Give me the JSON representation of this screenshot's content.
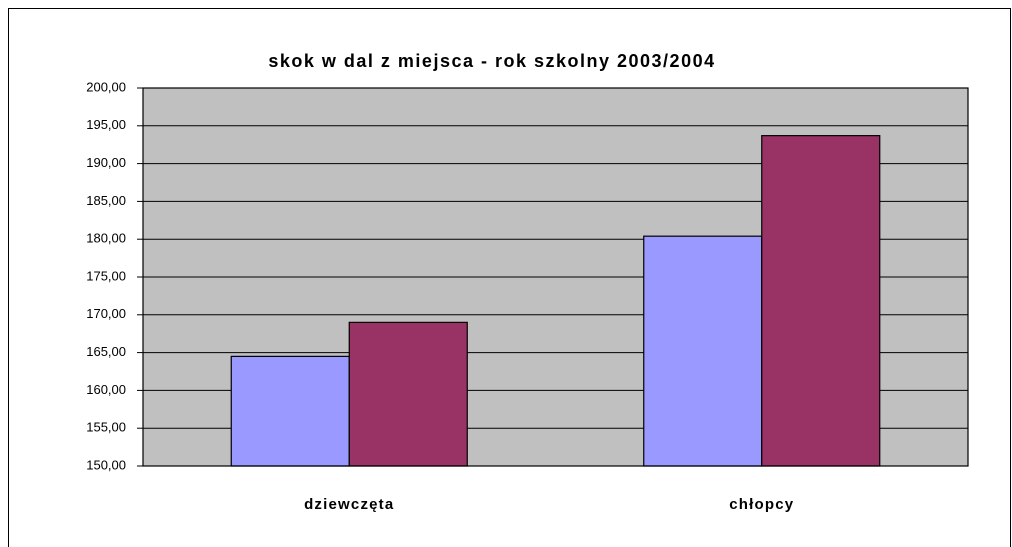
{
  "chart_data": {
    "type": "bar",
    "title": "skok w dal z miejsca - rok szkolny 2003/2004",
    "categories": [
      "dziewczęta",
      "chłopcy"
    ],
    "series": [
      {
        "color": "#9999ff",
        "values": [
          164.5,
          180.4
        ]
      },
      {
        "color": "#993366",
        "values": [
          169.0,
          193.7
        ]
      }
    ],
    "ylim": [
      150,
      200
    ],
    "yticks": [
      {
        "value": 150,
        "label": "150,00"
      },
      {
        "value": 155,
        "label": "155,00"
      },
      {
        "value": 160,
        "label": "160,00"
      },
      {
        "value": 165,
        "label": "165,00"
      },
      {
        "value": 170,
        "label": "170,00"
      },
      {
        "value": 175,
        "label": "175,00"
      },
      {
        "value": 180,
        "label": "180,00"
      },
      {
        "value": 185,
        "label": "185,00"
      },
      {
        "value": 190,
        "label": "190,00"
      },
      {
        "value": 195,
        "label": "195,00"
      },
      {
        "value": 200,
        "label": "200,00"
      }
    ],
    "grid": true,
    "plot_background": "#c0c0c0"
  }
}
